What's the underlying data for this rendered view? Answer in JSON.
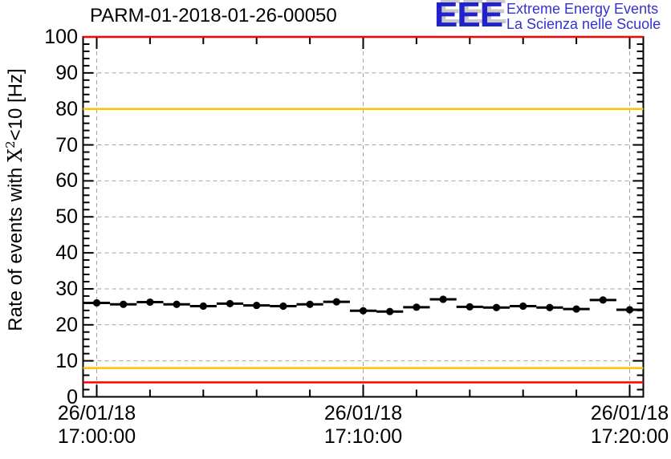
{
  "page": {
    "background": "#ffffff"
  },
  "header": {
    "title": "PARM-01-2018-01-26-00050",
    "logo": {
      "acronym": "EEE",
      "tagline1": "Extreme Energy Events",
      "tagline2": "La Scienza nelle Scuole",
      "acronym_color": "#2222cc",
      "shadow_color": "#c9c9c9",
      "tagline_color": "#3333cc"
    }
  },
  "chart_data": {
    "type": "scatter",
    "title": "PARM-01-2018-01-26-00050",
    "ylabel": "Rate of events with X^2<10 [Hz]",
    "ylabel_parts": {
      "prefix": "Rate of events with ",
      "sup_base": "X",
      "sup": "2",
      "suffix": "<10 [Hz]"
    },
    "ylim": [
      0,
      100
    ],
    "y_major_step": 10,
    "y_minor_step": 2,
    "x_axis": {
      "lim_minutes": [
        -0.51,
        20.51
      ],
      "minor_step_minutes": 2,
      "major_ticks": [
        {
          "t": 0,
          "date": "26/01/18",
          "time": "17:00:00"
        },
        {
          "t": 10,
          "date": "26/01/18",
          "time": "17:10:00"
        },
        {
          "t": 20,
          "date": "26/01/18",
          "time": "17:20:00"
        }
      ]
    },
    "series": [
      {
        "name": "event-rate",
        "marker": "filled-circle",
        "color": "#000000",
        "bin_width_seconds": 60,
        "xerr_minutes": 0.5,
        "yerr_hz": 0.65,
        "x_minutes": [
          0,
          1,
          2,
          3,
          4,
          5,
          6,
          7,
          8,
          9,
          10,
          11,
          12,
          13,
          14,
          15,
          16,
          17,
          18,
          19,
          20
        ],
        "values": [
          26.1,
          25.7,
          26.3,
          25.7,
          25.2,
          25.9,
          25.4,
          25.2,
          25.7,
          26.4,
          23.9,
          23.7,
          24.9,
          27.1,
          25.0,
          24.8,
          25.2,
          24.8,
          24.4,
          26.9,
          24.2
        ]
      }
    ],
    "thresholds": [
      {
        "value": 100,
        "color": "#ff0000"
      },
      {
        "value": 80,
        "color": "#fdc204"
      },
      {
        "value": 8,
        "color": "#fdc204"
      },
      {
        "value": 4,
        "color": "#ff0000"
      }
    ],
    "grid": {
      "show": true,
      "color": "#a2a2a2",
      "dash": "5,4"
    },
    "frame_color": "#000000"
  }
}
